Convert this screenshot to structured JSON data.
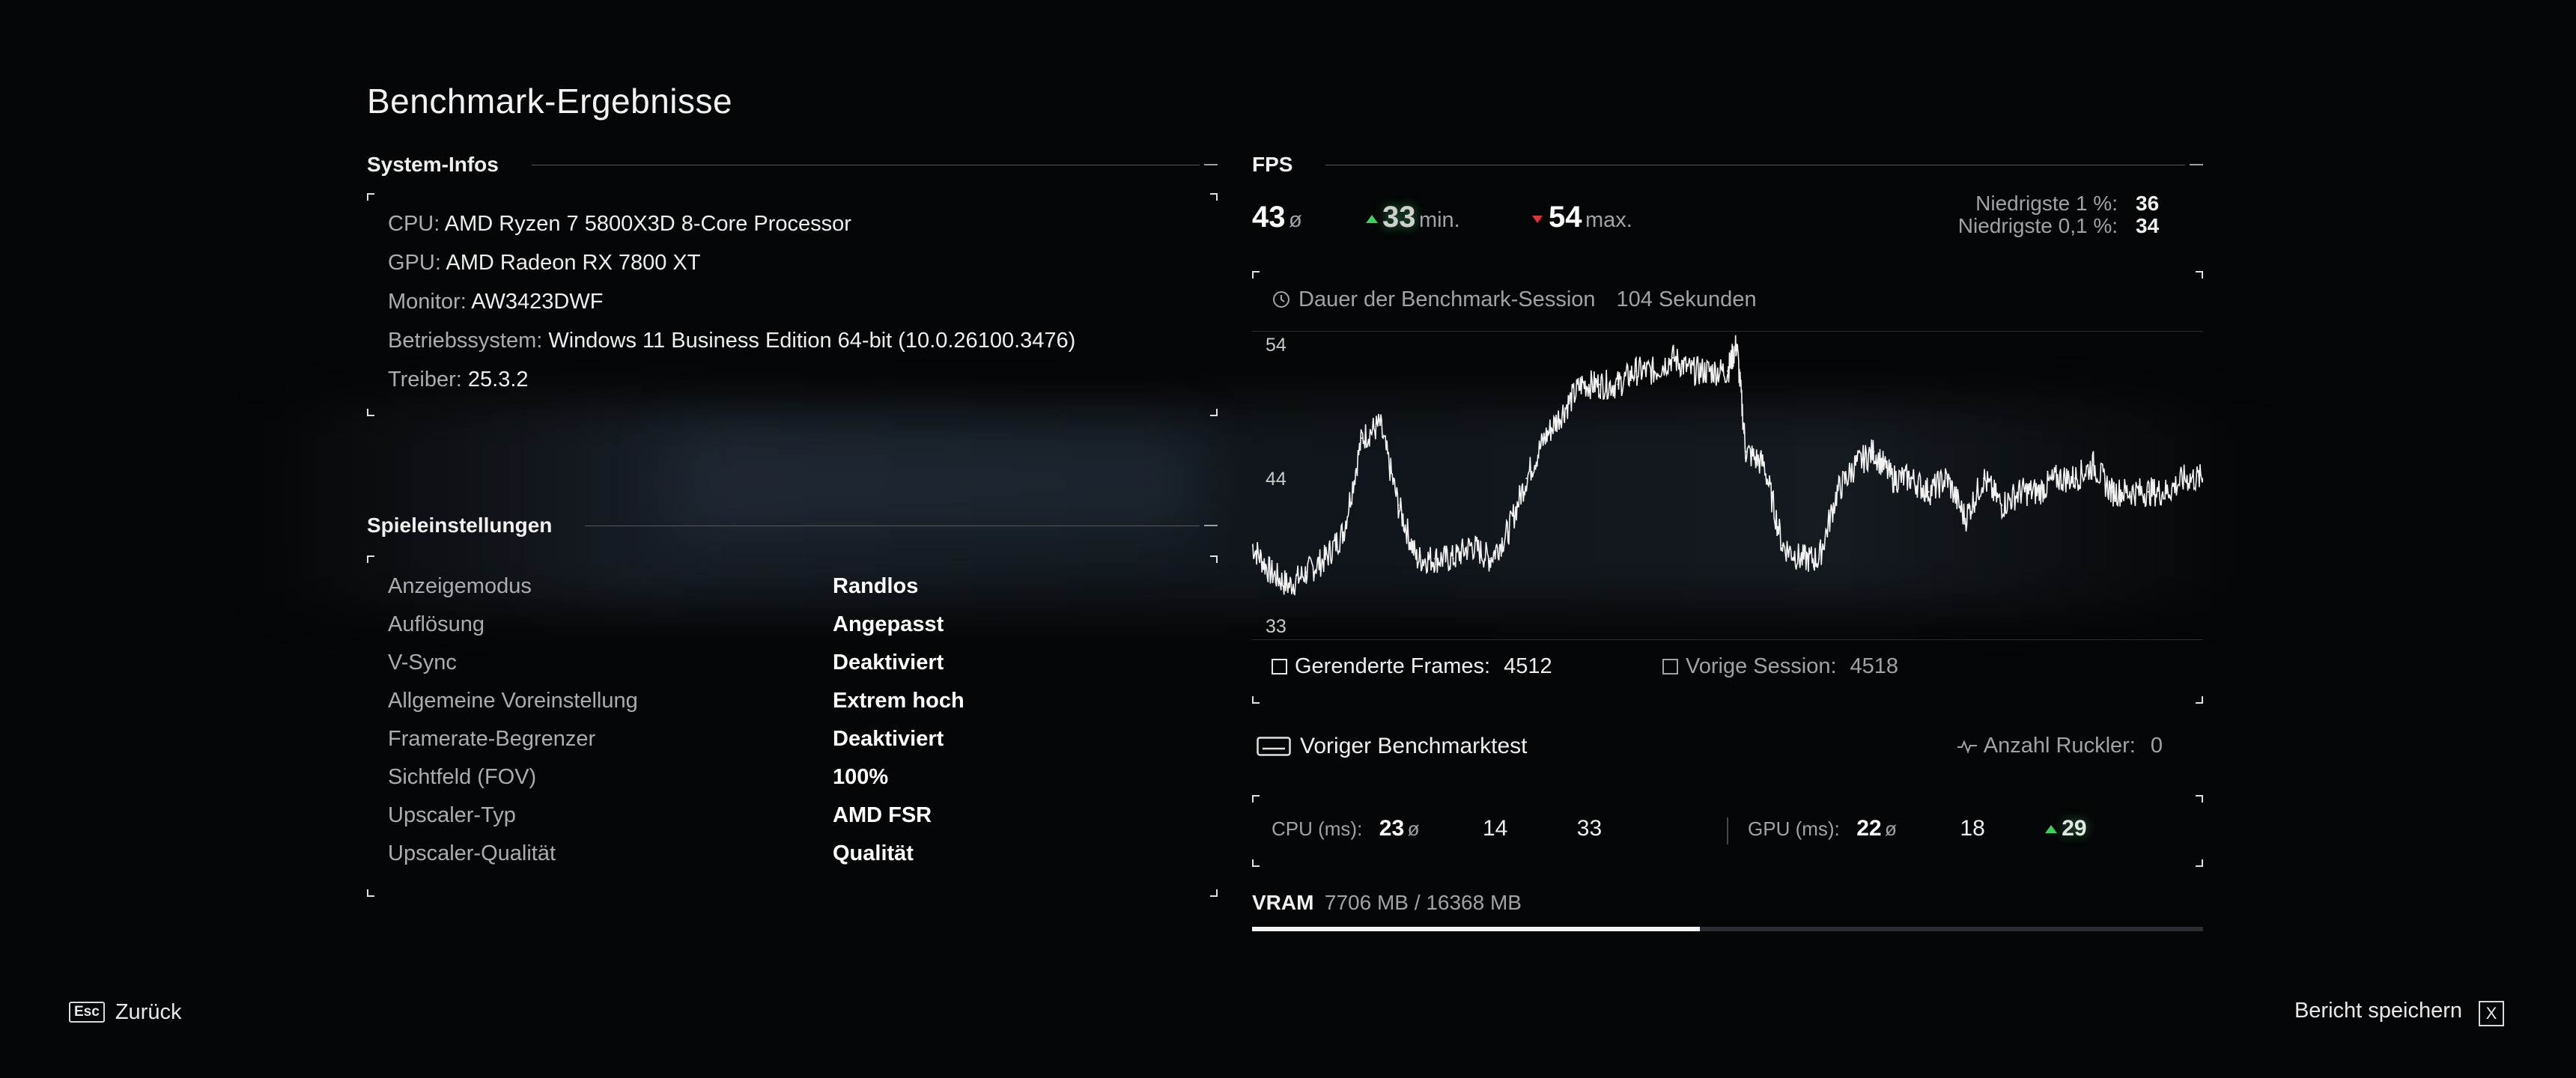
{
  "title": "Benchmark-Ergebnisse",
  "system_info": {
    "heading": "System-Infos",
    "rows": [
      {
        "key": "CPU:",
        "value": "AMD Ryzen 7 5800X3D 8-Core Processor"
      },
      {
        "key": "GPU:",
        "value": "AMD Radeon RX 7800 XT"
      },
      {
        "key": "Monitor:",
        "value": "AW3423DWF"
      },
      {
        "key": "Betriebssystem:",
        "value": "Windows 11 Business Edition 64-bit (10.0.26100.3476)"
      },
      {
        "key": "Treiber:",
        "value": "25.3.2"
      }
    ]
  },
  "game_settings": {
    "heading": "Spieleinstellungen",
    "rows": [
      {
        "key": "Anzeigemodus",
        "value": "Randlos"
      },
      {
        "key": "Auflösung",
        "value": "Angepasst"
      },
      {
        "key": "V-Sync",
        "value": "Deaktiviert"
      },
      {
        "key": "Allgemeine Voreinstellung",
        "value": "Extrem hoch"
      },
      {
        "key": "Framerate-Begrenzer",
        "value": "Deaktiviert"
      },
      {
        "key": "Sichtfeld (FOV)",
        "value": "100%"
      },
      {
        "key": "Upscaler-Typ",
        "value": "AMD FSR"
      },
      {
        "key": "Upscaler-Qualität",
        "value": "Qualität"
      }
    ]
  },
  "fps": {
    "heading": "FPS",
    "avg": "43",
    "avg_sym": "ø",
    "min": "33",
    "min_label": "min.",
    "max": "54",
    "max_label": "max.",
    "low1_label": "Niedrigste 1 %:",
    "low1_value": "36",
    "low01_label": "Niedrigste 0,1 %:",
    "low01_value": "34",
    "session_label": "Dauer der Benchmark-Session",
    "session_value": "104 Sekunden",
    "rendered_label": "Gerenderte Frames:",
    "rendered_value": "4512",
    "prev_label": "Vorige Session:",
    "prev_value": "4518",
    "colors": {
      "up": "#3fcf5a",
      "down": "#e0333a"
    }
  },
  "previous": {
    "label": "Voriger Benchmarktest",
    "stutter_label": "Anzahl Ruckler:",
    "stutter_value": "0"
  },
  "frametimes": {
    "cpu_label": "CPU (ms):",
    "cpu_avg": "23",
    "cpu_a": "14",
    "cpu_b": "33",
    "gpu_label": "GPU (ms):",
    "gpu_avg": "22",
    "gpu_a": "18",
    "gpu_b": "29",
    "avg_sym": "ø"
  },
  "vram": {
    "label": "VRAM",
    "value": "7706 MB / 16368 MB",
    "used_fraction": 0.4708
  },
  "footer": {
    "back_key": "Esc",
    "back_label": "Zurück",
    "save_label": "Bericht speichern",
    "save_key": "X"
  },
  "chart_data": {
    "type": "line",
    "title": "",
    "xlabel": "",
    "ylabel": "",
    "y_ticks": [
      33,
      44,
      54
    ],
    "ylim": [
      32,
      55
    ],
    "x_range_seconds": [
      0,
      104
    ],
    "grid": false,
    "series": [
      {
        "x": [
          0,
          2,
          4,
          6,
          8,
          10,
          12,
          14,
          16,
          18,
          20,
          22,
          24,
          26,
          28,
          30,
          32,
          34,
          36,
          38,
          40,
          42,
          44,
          46,
          48,
          50,
          52,
          53,
          54,
          56,
          58,
          60,
          62,
          64,
          66,
          68,
          70,
          72,
          74,
          76,
          78,
          80,
          82,
          84,
          86,
          88,
          90,
          92,
          94,
          96,
          98,
          100,
          102,
          104
        ],
        "values": [
          39,
          37,
          36,
          37,
          38,
          40,
          47,
          48,
          42,
          38,
          38,
          38,
          39,
          38,
          40,
          44,
          47,
          49,
          51,
          51,
          51,
          52,
          52,
          53,
          52,
          52,
          52,
          54,
          46,
          45,
          39,
          38,
          38,
          43,
          45,
          46,
          44,
          44,
          43,
          44,
          41,
          44,
          42,
          43,
          43,
          44,
          44,
          45,
          43,
          43,
          43,
          43,
          44,
          44
        ]
      }
    ]
  }
}
